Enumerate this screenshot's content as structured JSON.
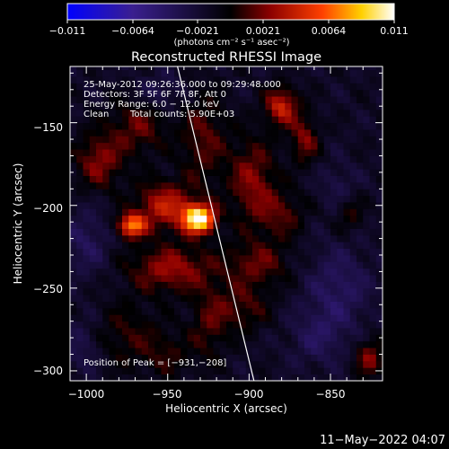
{
  "chart_data": {
    "type": "heatmap",
    "title": "Reconstructed RHESSI Image",
    "xlabel": "Heliocentric X (arcsec)",
    "ylabel": "Heliocentric Y (arcsec)",
    "xlim": [
      -1010,
      -818
    ],
    "ylim": [
      -306,
      -116
    ],
    "xticks": [
      -1000,
      -950,
      -900,
      -850
    ],
    "xtick_labels": [
      "−1000",
      "−950",
      "−900",
      "−850"
    ],
    "yticks": [
      -150,
      -200,
      -250,
      -300
    ],
    "ytick_labels": [
      "−150",
      "−200",
      "−250",
      "−300"
    ],
    "colorbar": {
      "range": [
        -0.011,
        0.011
      ],
      "ticks": [
        -0.011,
        -0.0064,
        -0.0021,
        0.0021,
        0.0064,
        0.011
      ],
      "tick_labels": [
        "−0.011",
        "−0.0064",
        "−0.0021",
        "0.0021",
        "0.0064",
        "0.011"
      ],
      "unit": "(photons cm⁻² s⁻¹ asec⁻²)",
      "colors": [
        "#0000ff",
        "#3a1f8f",
        "#000000",
        "#8b0000",
        "#ff4000",
        "#ffd000",
        "#ffffff"
      ]
    },
    "annotations": [
      "25-May-2012 09:26:36.000 to 09:29:48.000",
      "Detectors: 3F 5F 6F 7F 8F, Att 0",
      "Energy Range: 6.0 − 12.0 keV",
      "Clean",
      "Total counts: 5.90E+03"
    ],
    "peak_label": "Position of Peak = [−931,−208]",
    "peak": {
      "x": -931,
      "y": -208,
      "value": 0.011
    },
    "limb_line": [
      {
        "x": -944,
        "y": -116
      },
      {
        "x": -897,
        "y": -306
      }
    ],
    "sources": [
      {
        "x": -931,
        "y": -208,
        "amp": 0.0125,
        "sx": 7,
        "sy": 6
      },
      {
        "x": -972,
        "y": -212,
        "amp": 0.0085,
        "sx": 6,
        "sy": 5
      },
      {
        "x": -952,
        "y": -200,
        "amp": 0.0055,
        "sx": 12,
        "sy": 10
      },
      {
        "x": -948,
        "y": -238,
        "amp": 0.0045,
        "sx": 18,
        "sy": 10
      },
      {
        "x": -992,
        "y": -173,
        "amp": 0.004,
        "sx": 10,
        "sy": 12
      },
      {
        "x": -968,
        "y": -152,
        "amp": 0.0032,
        "sx": 12,
        "sy": 12
      },
      {
        "x": -928,
        "y": -160,
        "amp": 0.003,
        "sx": 10,
        "sy": 20
      },
      {
        "x": -880,
        "y": -140,
        "amp": 0.0058,
        "sx": 7,
        "sy": 8
      },
      {
        "x": -866,
        "y": -160,
        "amp": 0.0038,
        "sx": 6,
        "sy": 10
      },
      {
        "x": -898,
        "y": -185,
        "amp": 0.004,
        "sx": 10,
        "sy": 18
      },
      {
        "x": -880,
        "y": -205,
        "amp": 0.0028,
        "sx": 10,
        "sy": 10
      },
      {
        "x": -895,
        "y": -235,
        "amp": 0.0032,
        "sx": 14,
        "sy": 10
      },
      {
        "x": -905,
        "y": -262,
        "amp": 0.0028,
        "sx": 12,
        "sy": 10
      },
      {
        "x": -975,
        "y": -278,
        "amp": 0.0022,
        "sx": 14,
        "sy": 14
      },
      {
        "x": -950,
        "y": -290,
        "amp": 0.002,
        "sx": 10,
        "sy": 10
      },
      {
        "x": -925,
        "y": -272,
        "amp": 0.0025,
        "sx": 8,
        "sy": 16
      },
      {
        "x": -826,
        "y": -292,
        "amp": 0.004,
        "sx": 6,
        "sy": 8
      },
      {
        "x": -838,
        "y": -205,
        "amp": 0.0022,
        "sx": 6,
        "sy": 8
      },
      {
        "x": -1000,
        "y": -222,
        "amp": -0.0022,
        "sx": 10,
        "sy": 14
      },
      {
        "x": -955,
        "y": -132,
        "amp": -0.002,
        "sx": 10,
        "sy": 8
      },
      {
        "x": -845,
        "y": -250,
        "amp": -0.0025,
        "sx": 14,
        "sy": 18
      },
      {
        "x": -858,
        "y": -280,
        "amp": -0.002,
        "sx": 12,
        "sy": 12
      },
      {
        "x": -1002,
        "y": -285,
        "amp": -0.0018,
        "sx": 8,
        "sy": 12
      },
      {
        "x": -845,
        "y": -188,
        "amp": -0.0015,
        "sx": 8,
        "sy": 10
      }
    ]
  },
  "footer": {
    "timestamp": "11−May−2022 04:07"
  }
}
